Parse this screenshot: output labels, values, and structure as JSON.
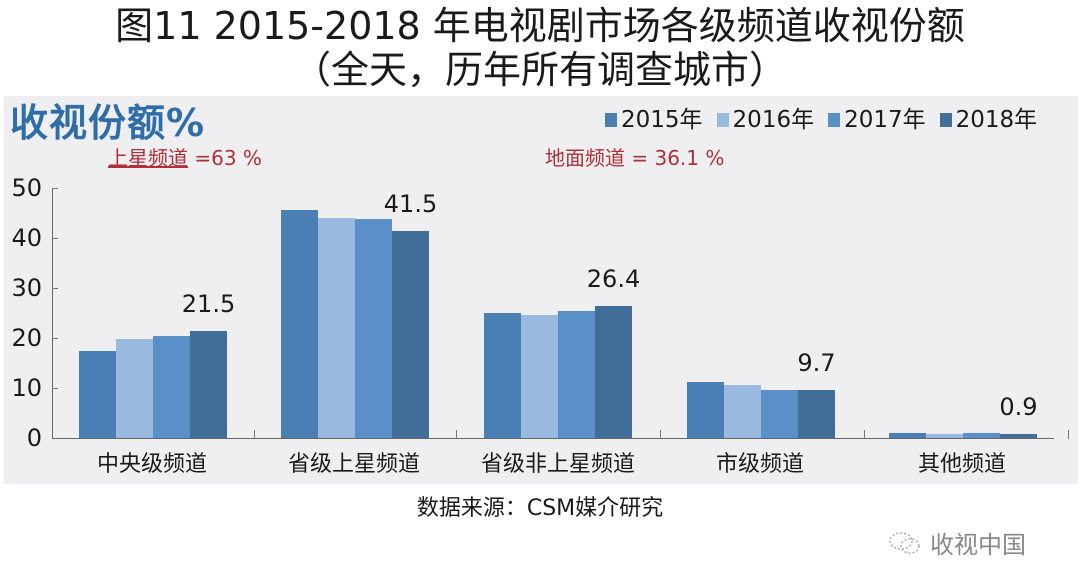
{
  "header": {
    "title_line1": "图11 2015-2018 年电视剧市场各级频道收视份额",
    "title_line2": "（全天，历年所有调查城市）"
  },
  "panel": {
    "unit_title": "收视份额%",
    "note_left_label": "上星频道",
    "note_left_value": " =63 %",
    "note_right_label": "地面频道",
    "note_right_value": " =  36.1 %"
  },
  "legend": [
    {
      "label": "2015年",
      "color": "#4a7fb3"
    },
    {
      "label": "2016年",
      "color": "#9ab9de"
    },
    {
      "label": "2017年",
      "color": "#5b8fc7"
    },
    {
      "label": "2018年",
      "color": "#416d99"
    }
  ],
  "yaxis": {
    "ticks": [
      "0",
      "10",
      "20",
      "30",
      "40",
      "50"
    ]
  },
  "footer": {
    "source": "数据来源：CSM媒介研究",
    "watermark": "收视中国"
  },
  "chart_data": {
    "type": "bar",
    "title": "图11 2015-2018 年电视剧市场各级频道收视份额（全天，历年所有调查城市）",
    "xlabel": "",
    "ylabel": "收视份额%",
    "ylim": [
      0,
      50
    ],
    "yticks": [
      0,
      10,
      20,
      30,
      40,
      50
    ],
    "grid": false,
    "legend_position": "top-right",
    "categories": [
      "中央级频道",
      "省级上星频道",
      "省级非上星频道",
      "市级频道",
      "其他频道"
    ],
    "series": [
      {
        "name": "2015年",
        "color": "#4a7fb3",
        "values": [
          17.4,
          45.6,
          25.0,
          11.2,
          1.0
        ]
      },
      {
        "name": "2016年",
        "color": "#9ab9de",
        "values": [
          19.8,
          44.0,
          24.6,
          10.6,
          0.9
        ]
      },
      {
        "name": "2017年",
        "color": "#5b8fc7",
        "values": [
          20.4,
          43.8,
          25.4,
          9.6,
          1.0
        ]
      },
      {
        "name": "2018年",
        "color": "#416d99",
        "values": [
          21.5,
          41.5,
          26.4,
          9.7,
          0.9
        ]
      }
    ],
    "data_labels": [
      "21.5",
      "41.5",
      "26.4",
      "9.7",
      "0.9"
    ],
    "annotations": [
      "上星频道 =63 %",
      "地面频道 = 36.1 %"
    ],
    "source": "数据来源：CSM媒介研究"
  }
}
